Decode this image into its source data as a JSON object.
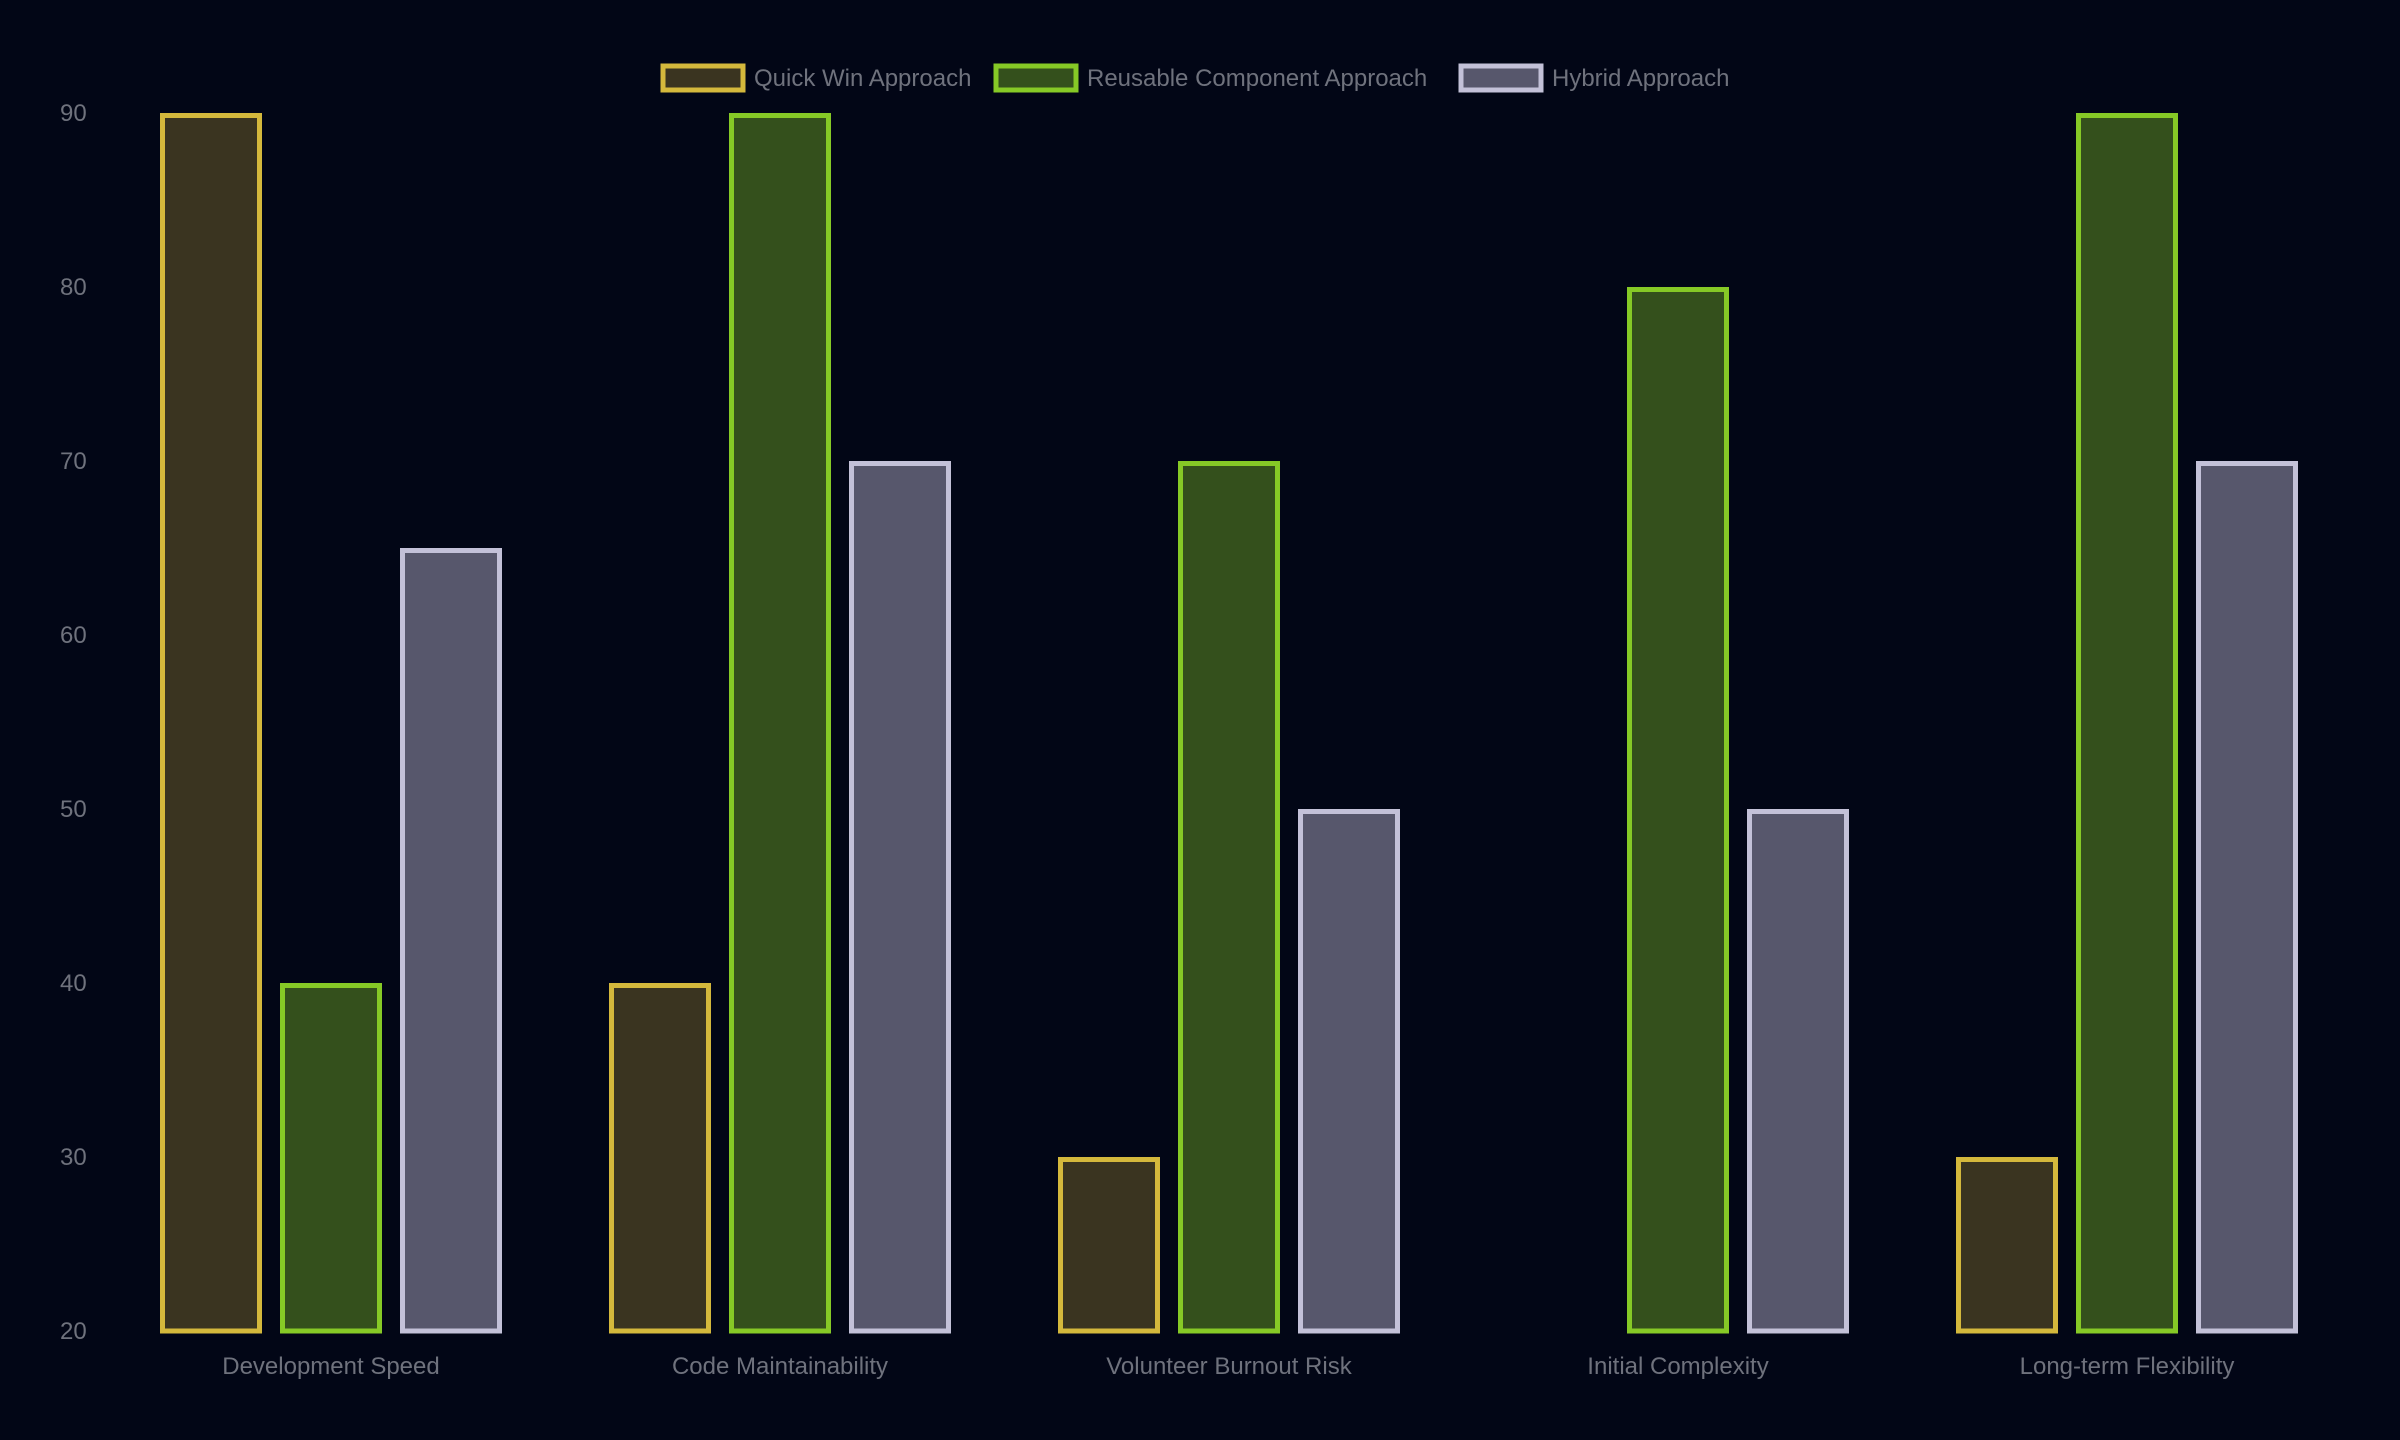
{
  "chart_data": {
    "type": "bar",
    "categories": [
      "Development Speed",
      "Code Maintainability",
      "Volunteer Burnout Risk",
      "Initial Complexity",
      "Long-term Flexibility"
    ],
    "series": [
      {
        "name": "Quick Win Approach",
        "values": [
          90,
          40,
          30,
          20,
          30
        ],
        "stroke": "#d4b83c",
        "fill": "#3a3420"
      },
      {
        "name": "Reusable Component Approach",
        "values": [
          40,
          90,
          70,
          80,
          90
        ],
        "stroke": "#86c926",
        "fill": "#34501c"
      },
      {
        "name": "Hybrid Approach",
        "values": [
          65,
          70,
          50,
          50,
          70
        ],
        "stroke": "#c3c1d8",
        "fill": "#57576c"
      }
    ],
    "ylim": [
      20,
      90
    ],
    "yticks": [
      20,
      30,
      40,
      50,
      60,
      70,
      80,
      90
    ],
    "grid": false,
    "legend_position": "top-center",
    "background": "#020616",
    "text_color": "#6f727d",
    "title": "",
    "xlabel": "",
    "ylabel": ""
  }
}
